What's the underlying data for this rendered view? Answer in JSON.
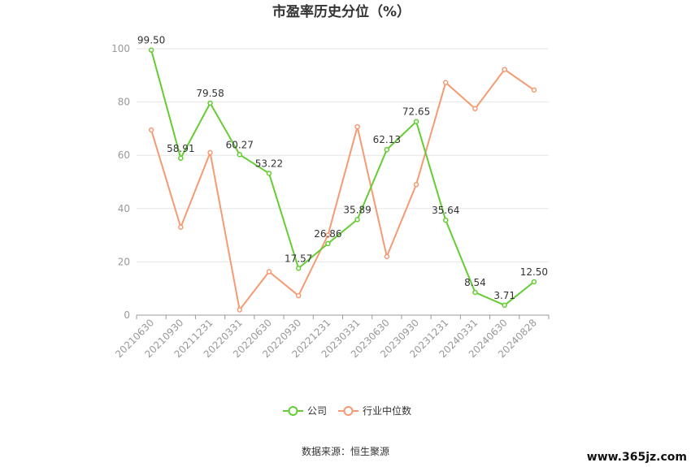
{
  "chart_data": {
    "type": "line",
    "title": "市盈率历史分位（%）",
    "categories": [
      "20210630",
      "20210930",
      "20211231",
      "20220331",
      "20220630",
      "20220930",
      "20221231",
      "20230331",
      "20230630",
      "20230930",
      "20231231",
      "20240331",
      "20240630",
      "20240828"
    ],
    "series": [
      {
        "name": "公司",
        "values": [
          99.5,
          58.91,
          79.58,
          60.27,
          53.22,
          17.57,
          26.86,
          35.89,
          62.13,
          72.65,
          35.64,
          8.54,
          3.71,
          12.5
        ],
        "labels": [
          "99.50",
          "58.91",
          "79.58",
          "60.27",
          "53.22",
          "17.57",
          "26.86",
          "35.89",
          "62.13",
          "72.65",
          "35.64",
          "8.54",
          "3.71",
          "12.50"
        ]
      },
      {
        "name": "行业中位数",
        "values": [
          69.5,
          33,
          61,
          2,
          16.3,
          7.3,
          30,
          70.7,
          22,
          49,
          87.3,
          77.5,
          92.2,
          84.5
        ]
      }
    ],
    "ylim": [
      0,
      100
    ],
    "yticks": [
      "0",
      "20",
      "40",
      "60",
      "80",
      "100"
    ],
    "grid": true,
    "legend": "bottom",
    "colors": {
      "公司": "#66cc33",
      "行业中位数": "#f59a73"
    }
  },
  "source_text": "数据来源：恒生聚源",
  "watermark": "www.365jz.com"
}
